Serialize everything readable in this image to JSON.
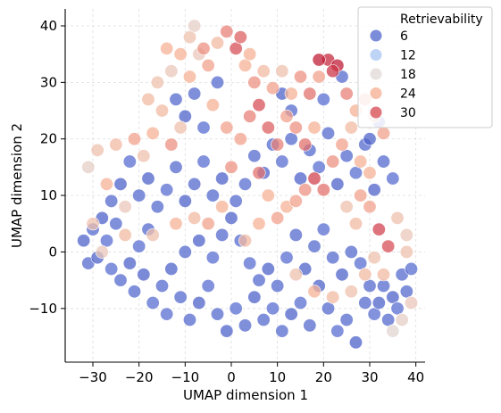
{
  "chart_data": {
    "type": "scatter",
    "title": "",
    "xlabel": "UMAP dimension 1",
    "ylabel": "UMAP dimension 2",
    "xlim": [
      -36,
      42
    ],
    "ylim": [
      -19.5,
      43
    ],
    "xticks": [
      -30,
      -20,
      -10,
      0,
      10,
      20,
      30,
      40
    ],
    "xtick_labels": [
      "−30",
      "−20",
      "−10",
      "0",
      "10",
      "20",
      "30",
      "40"
    ],
    "yticks": [
      -10,
      0,
      10,
      20,
      30,
      40
    ],
    "ytick_labels": [
      "−10",
      "0",
      "10",
      "20",
      "30",
      "40"
    ],
    "grid": true,
    "legend": {
      "title": "Retrievability",
      "placement": "top-right",
      "entries": [
        {
          "label": "6",
          "color": "#5a6fd0"
        },
        {
          "label": "12",
          "color": "#aec9f5"
        },
        {
          "label": "18",
          "color": "#e2dcd8"
        },
        {
          "label": "24",
          "color": "#f5b196"
        },
        {
          "label": "30",
          "color": "#d8525a"
        }
      ]
    },
    "color_scale": {
      "min": 0,
      "max": 36,
      "colormap": "coolwarm"
    },
    "series": [
      {
        "values": [
          {
            "x": -32,
            "y": 2,
            "r": 4
          },
          {
            "x": -30,
            "y": 4,
            "r": 5
          },
          {
            "x": -28,
            "y": 6,
            "r": 4
          },
          {
            "x": -27,
            "y": 2,
            "r": 6
          },
          {
            "x": -25,
            "y": 5,
            "r": 5
          },
          {
            "x": -31,
            "y": -2,
            "r": 5
          },
          {
            "x": -29,
            "y": -1,
            "r": 4
          },
          {
            "x": -26,
            "y": -3,
            "r": 6
          },
          {
            "x": -24,
            "y": -5,
            "r": 5
          },
          {
            "x": -22,
            "y": -2,
            "r": 4
          },
          {
            "x": -20,
            "y": 1,
            "r": 6
          },
          {
            "x": -18,
            "y": 4,
            "r": 5
          },
          {
            "x": -21,
            "y": -7,
            "r": 5
          },
          {
            "x": -19,
            "y": -4,
            "r": 4
          },
          {
            "x": -17,
            "y": -9,
            "r": 6
          },
          {
            "x": -15,
            "y": -6,
            "r": 5
          },
          {
            "x": -13,
            "y": -3,
            "r": 4
          },
          {
            "x": -11,
            "y": -8,
            "r": 5
          },
          {
            "x": -14,
            "y": -11,
            "r": 6
          },
          {
            "x": -9,
            "y": -12,
            "r": 5
          },
          {
            "x": -7,
            "y": -9,
            "r": 4
          },
          {
            "x": -5,
            "y": -6,
            "r": 6
          },
          {
            "x": -3,
            "y": -11,
            "r": 5
          },
          {
            "x": -1,
            "y": -14,
            "r": 4
          },
          {
            "x": 1,
            "y": -10,
            "r": 6
          },
          {
            "x": 3,
            "y": -13,
            "r": 5
          },
          {
            "x": 5,
            "y": -8,
            "r": 4
          },
          {
            "x": 7,
            "y": -12,
            "r": 5
          },
          {
            "x": 9,
            "y": -10,
            "r": 6
          },
          {
            "x": 11,
            "y": -14,
            "r": 5
          },
          {
            "x": 13,
            "y": -11,
            "r": 4
          },
          {
            "x": 15,
            "y": -9,
            "r": 6
          },
          {
            "x": 17,
            "y": -13,
            "r": 5
          },
          {
            "x": 19,
            "y": -6,
            "r": 4
          },
          {
            "x": 21,
            "y": -10,
            "r": 5
          },
          {
            "x": 23,
            "y": -14,
            "r": 6
          },
          {
            "x": 25,
            "y": -12,
            "r": 5
          },
          {
            "x": 27,
            "y": -16,
            "r": 4
          },
          {
            "x": 29,
            "y": -9,
            "r": 5
          },
          {
            "x": 31,
            "y": -11,
            "r": 6
          },
          {
            "x": 33,
            "y": -6,
            "r": 5
          },
          {
            "x": 35,
            "y": -8,
            "r": 4
          },
          {
            "x": 37,
            "y": -4,
            "r": 5
          },
          {
            "x": 39,
            "y": -3,
            "r": 6
          },
          {
            "x": -10,
            "y": 0,
            "r": 5
          },
          {
            "x": -7,
            "y": 2,
            "r": 4
          },
          {
            "x": -4,
            "y": -1,
            "r": 6
          },
          {
            "x": -2,
            "y": 3,
            "r": 5
          },
          {
            "x": 0,
            "y": 6,
            "r": 4
          },
          {
            "x": 2,
            "y": 2,
            "r": 5
          },
          {
            "x": 4,
            "y": -2,
            "r": 6
          },
          {
            "x": 6,
            "y": -5,
            "r": 5
          },
          {
            "x": 8,
            "y": -3,
            "r": 4
          },
          {
            "x": 10,
            "y": -6,
            "r": 5
          },
          {
            "x": 12,
            "y": -1,
            "r": 6
          },
          {
            "x": 14,
            "y": 3,
            "r": 5
          },
          {
            "x": 16,
            "y": -3,
            "r": 4
          },
          {
            "x": 18,
            "y": 1,
            "r": 5
          },
          {
            "x": 20,
            "y": 4,
            "r": 6
          },
          {
            "x": 22,
            "y": -1,
            "r": 5
          },
          {
            "x": 24,
            "y": -4,
            "r": 4
          },
          {
            "x": 26,
            "y": 0,
            "r": 5
          },
          {
            "x": 28,
            "y": -2,
            "r": 6
          },
          {
            "x": 30,
            "y": -6,
            "r": 5
          },
          {
            "x": 32,
            "y": -9,
            "r": 4
          },
          {
            "x": 34,
            "y": -12,
            "r": 5
          },
          {
            "x": 36,
            "y": -10,
            "r": 6
          },
          {
            "x": 38,
            "y": -7,
            "r": 5
          },
          {
            "x": -26,
            "y": 9,
            "r": 5
          },
          {
            "x": -24,
            "y": 12,
            "r": 4
          },
          {
            "x": -22,
            "y": 16,
            "r": 6
          },
          {
            "x": -20,
            "y": 10,
            "r": 5
          },
          {
            "x": -18,
            "y": 13,
            "r": 4
          },
          {
            "x": -16,
            "y": 8,
            "r": 5
          },
          {
            "x": -14,
            "y": 11,
            "r": 6
          },
          {
            "x": -12,
            "y": 15,
            "r": 5
          },
          {
            "x": -10,
            "y": 9,
            "r": 4
          },
          {
            "x": -8,
            "y": 12,
            "r": 5
          },
          {
            "x": -6,
            "y": 16,
            "r": 6
          },
          {
            "x": -4,
            "y": 10,
            "r": 5
          },
          {
            "x": -2,
            "y": 13,
            "r": 4
          },
          {
            "x": 1,
            "y": 9,
            "r": 5
          },
          {
            "x": 3,
            "y": 12,
            "r": 6
          },
          {
            "x": 5,
            "y": 17,
            "r": 5
          },
          {
            "x": 7,
            "y": 14,
            "r": 4
          },
          {
            "x": 9,
            "y": 19,
            "r": 5
          },
          {
            "x": 11,
            "y": 16,
            "r": 6
          },
          {
            "x": 13,
            "y": 20,
            "r": 5
          },
          {
            "x": 15,
            "y": 13,
            "r": 4
          },
          {
            "x": 17,
            "y": 18,
            "r": 5
          },
          {
            "x": 19,
            "y": 15,
            "r": 6
          },
          {
            "x": 21,
            "y": 21,
            "r": 5
          },
          {
            "x": 23,
            "y": 12,
            "r": 4
          },
          {
            "x": 25,
            "y": 17,
            "r": 5
          },
          {
            "x": 27,
            "y": 14,
            "r": 6
          },
          {
            "x": 29,
            "y": 19,
            "r": 5
          },
          {
            "x": 31,
            "y": 11,
            "r": 4
          },
          {
            "x": 33,
            "y": 16,
            "r": 5
          },
          {
            "x": 35,
            "y": 13,
            "r": 6
          },
          {
            "x": -12,
            "y": 27,
            "r": 5
          },
          {
            "x": -10,
            "y": 24,
            "r": 4
          },
          {
            "x": -8,
            "y": 28,
            "r": 5
          },
          {
            "x": -6,
            "y": 22,
            "r": 6
          },
          {
            "x": -3,
            "y": 30,
            "r": 5
          },
          {
            "x": 11,
            "y": 28,
            "r": 4
          },
          {
            "x": 13,
            "y": 25,
            "r": 5
          },
          {
            "x": 20,
            "y": 27,
            "r": 6
          },
          {
            "x": 24,
            "y": 31,
            "r": 5
          },
          {
            "x": 30,
            "y": 20,
            "r": 4
          },
          {
            "x": 32,
            "y": 23,
            "r": 5
          },
          {
            "x": -31,
            "y": 15,
            "r": 20
          },
          {
            "x": -29,
            "y": 18,
            "r": 22
          },
          {
            "x": -27,
            "y": 12,
            "r": 24
          },
          {
            "x": -25,
            "y": 19,
            "r": 23
          },
          {
            "x": -23,
            "y": 8,
            "r": 21
          },
          {
            "x": -21,
            "y": 20,
            "r": 25
          },
          {
            "x": -19,
            "y": 17,
            "r": 22
          },
          {
            "x": -17,
            "y": 21,
            "r": 24
          },
          {
            "x": -15,
            "y": 25,
            "r": 23
          },
          {
            "x": -13,
            "y": 19,
            "r": 26
          },
          {
            "x": -11,
            "y": 22,
            "r": 22
          },
          {
            "x": -9,
            "y": 31,
            "r": 24
          },
          {
            "x": -7,
            "y": 35,
            "r": 21
          },
          {
            "x": -5,
            "y": 33,
            "r": 25
          },
          {
            "x": -3,
            "y": 37,
            "r": 23
          },
          {
            "x": -1,
            "y": 39,
            "r": 27
          },
          {
            "x": 1,
            "y": 36,
            "r": 30
          },
          {
            "x": 3,
            "y": 33,
            "r": 24
          },
          {
            "x": 5,
            "y": 30,
            "r": 26
          },
          {
            "x": 7,
            "y": 32,
            "r": 23
          },
          {
            "x": 9,
            "y": 29,
            "r": 25
          },
          {
            "x": 11,
            "y": 32,
            "r": 22
          },
          {
            "x": 13,
            "y": 28,
            "r": 24
          },
          {
            "x": 15,
            "y": 31,
            "r": 26
          },
          {
            "x": 17,
            "y": 28,
            "r": 28
          },
          {
            "x": 19,
            "y": 31,
            "r": 25
          },
          {
            "x": 21,
            "y": 34,
            "r": 33
          },
          {
            "x": 23,
            "y": 33,
            "r": 34
          },
          {
            "x": 19,
            "y": 34,
            "r": 34
          },
          {
            "x": 22,
            "y": 32,
            "r": 32
          },
          {
            "x": 25,
            "y": 28,
            "r": 27
          },
          {
            "x": 27,
            "y": 25,
            "r": 24
          },
          {
            "x": 29,
            "y": 27,
            "r": 26
          },
          {
            "x": 31,
            "y": 24,
            "r": 23
          },
          {
            "x": 33,
            "y": 21,
            "r": 25
          },
          {
            "x": -9,
            "y": 38,
            "r": 22
          },
          {
            "x": -11,
            "y": 35,
            "r": 24
          },
          {
            "x": -13,
            "y": 32,
            "r": 21
          },
          {
            "x": -8,
            "y": 40,
            "r": 20
          },
          {
            "x": -6,
            "y": 36,
            "r": 26
          },
          {
            "x": 2,
            "y": 38,
            "r": 29
          },
          {
            "x": 4,
            "y": 35,
            "r": 24
          },
          {
            "x": 6,
            "y": 26,
            "r": 30
          },
          {
            "x": 8,
            "y": 22,
            "r": 29
          },
          {
            "x": 10,
            "y": 19,
            "r": 27
          },
          {
            "x": 12,
            "y": 24,
            "r": 25
          },
          {
            "x": 14,
            "y": 22,
            "r": 26
          },
          {
            "x": 16,
            "y": 19,
            "r": 28
          },
          {
            "x": 18,
            "y": 13,
            "r": 31
          },
          {
            "x": 20,
            "y": 11,
            "r": 28
          },
          {
            "x": 18,
            "y": 22,
            "r": 24
          },
          {
            "x": 22,
            "y": 16,
            "r": 26
          },
          {
            "x": 24,
            "y": 19,
            "r": 25
          },
          {
            "x": 26,
            "y": 22,
            "r": 23
          },
          {
            "x": 28,
            "y": 16,
            "r": 24
          },
          {
            "x": 30,
            "y": 8,
            "r": 25
          },
          {
            "x": 32,
            "y": 4,
            "r": 31
          },
          {
            "x": 34,
            "y": 1,
            "r": 30
          },
          {
            "x": 36,
            "y": 6,
            "r": 22
          },
          {
            "x": 38,
            "y": 3,
            "r": 21
          },
          {
            "x": 35,
            "y": -14,
            "r": 19
          },
          {
            "x": 37,
            "y": -12,
            "r": 20
          },
          {
            "x": 33,
            "y": -4,
            "r": 23
          },
          {
            "x": 31,
            "y": -1,
            "r": 22
          },
          {
            "x": 27,
            "y": 5,
            "r": 23
          },
          {
            "x": 25,
            "y": 8,
            "r": 22
          },
          {
            "x": -30,
            "y": 5,
            "r": 22
          },
          {
            "x": -28,
            "y": 0,
            "r": 21
          },
          {
            "x": -23,
            "y": 3,
            "r": 23
          },
          {
            "x": -17,
            "y": 3,
            "r": 22
          },
          {
            "x": -12,
            "y": 5,
            "r": 24
          },
          {
            "x": -8,
            "y": 6,
            "r": 23
          },
          {
            "x": -5,
            "y": 5,
            "r": 25
          },
          {
            "x": -2,
            "y": 8,
            "r": 24
          },
          {
            "x": 0,
            "y": 15,
            "r": 26
          },
          {
            "x": 2,
            "y": 20,
            "r": 25
          },
          {
            "x": 4,
            "y": 24,
            "r": 27
          },
          {
            "x": 6,
            "y": 14,
            "r": 28
          },
          {
            "x": 8,
            "y": 10,
            "r": 24
          },
          {
            "x": 10,
            "y": 6,
            "r": 25
          },
          {
            "x": 12,
            "y": 8,
            "r": 24
          },
          {
            "x": 14,
            "y": 9,
            "r": 25
          },
          {
            "x": 16,
            "y": 11,
            "r": 26
          },
          {
            "x": -18,
            "y": 27,
            "r": 23
          },
          {
            "x": -16,
            "y": 30,
            "r": 22
          },
          {
            "x": -14,
            "y": 36,
            "r": 24
          },
          {
            "x": -4,
            "y": 26,
            "r": 24
          },
          {
            "x": -1,
            "y": 22,
            "r": 25
          },
          {
            "x": 6,
            "y": 5,
            "r": 24
          },
          {
            "x": 3,
            "y": 2,
            "r": 23
          },
          {
            "x": 14,
            "y": -4,
            "r": 22
          },
          {
            "x": 18,
            "y": -7,
            "r": 24
          },
          {
            "x": 22,
            "y": -8,
            "r": 23
          },
          {
            "x": 26,
            "y": -7,
            "r": 22
          },
          {
            "x": 29,
            "y": -4,
            "r": 23
          },
          {
            "x": 38,
            "y": 0,
            "r": 22
          },
          {
            "x": 39,
            "y": -9,
            "r": 21
          },
          {
            "x": 28,
            "y": 10,
            "r": 25
          },
          {
            "x": 30,
            "y": 14,
            "r": 24
          }
        ]
      }
    ]
  }
}
